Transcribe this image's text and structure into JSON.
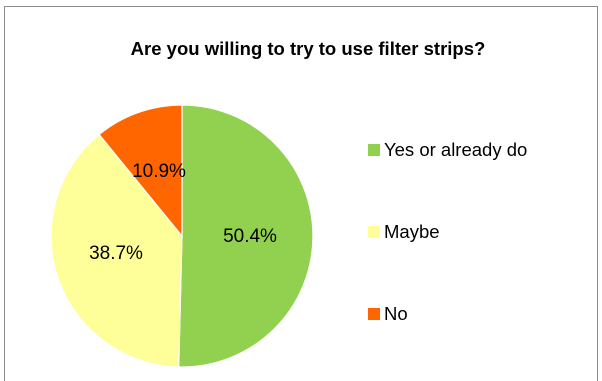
{
  "chart_data": {
    "type": "pie",
    "title": "Are you willing to try to use filter strips?",
    "categories": [
      "Yes or already do",
      "Maybe",
      "No"
    ],
    "values": [
      50.4,
      38.7,
      10.9
    ],
    "data_labels": [
      "50.4%",
      "38.7%",
      "10.9%"
    ],
    "colors": [
      "#92d050",
      "#ffff99",
      "#ff6600"
    ],
    "start_angle_deg": 0,
    "direction": "clockwise",
    "legend_position": "right",
    "grid": false
  }
}
